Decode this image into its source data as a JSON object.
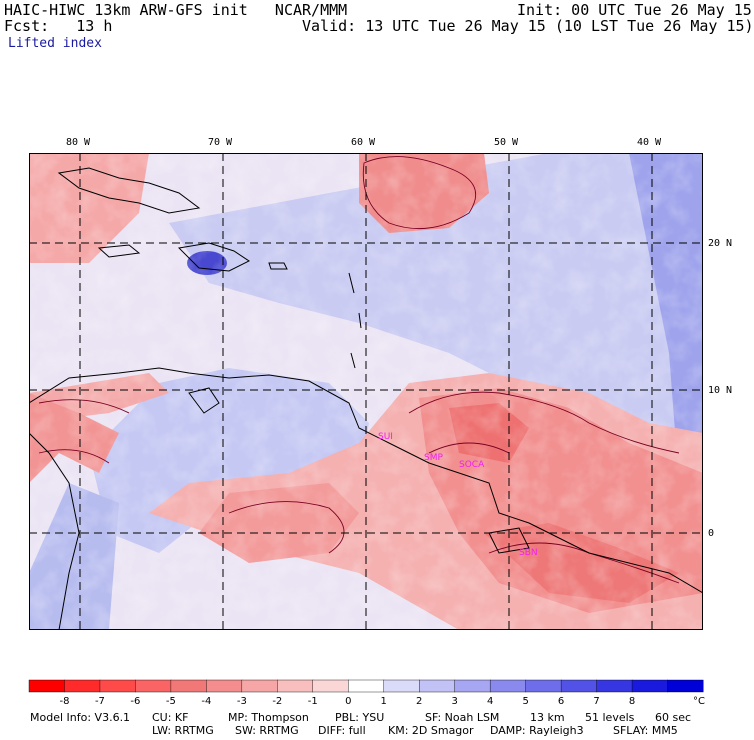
{
  "header": {
    "title": "HAIC-HIWC 13km ARW-GFS init   NCAR/MMM",
    "init": "Init: 00 UTC Tue 26 May 15",
    "fcst": "Fcst:   13 h",
    "valid": "Valid: 13 UTC Tue 26 May 15 (10 LST Tue 26 May 15)",
    "field": "Lifted index"
  },
  "map": {
    "lon_labels": [
      "80 W",
      "70 W",
      "60 W",
      "50 W",
      "40 W"
    ],
    "lat_labels": [
      "20 N",
      "10 N",
      "0"
    ],
    "station_labels": [
      "SUI",
      "SMP",
      "SOCA",
      "SBN"
    ],
    "station_color": "#ee22ee",
    "land_outline_color": "#000000",
    "contour_color": "#7a0022"
  },
  "colorbar": {
    "ticks": [
      "-8",
      "-7",
      "-6",
      "-5",
      "-4",
      "-3",
      "-2",
      "-1",
      "0",
      "1",
      "2",
      "3",
      "4",
      "5",
      "6",
      "7",
      "8"
    ],
    "unit": "°C",
    "colors": [
      "#ff0000",
      "#ff2a2a",
      "#ff4a4a",
      "#fa6464",
      "#f27878",
      "#f48e8e",
      "#f6a6a6",
      "#f9bebe",
      "#fbd6d6",
      "#ffffff",
      "#dadaf9",
      "#c2c2f6",
      "#a6a6f2",
      "#8a8aee",
      "#6e6eea",
      "#5252e6",
      "#3636e2",
      "#1a1ade",
      "#0000d8"
    ]
  },
  "footer": {
    "line1": [
      "Model Info: V3.6.1",
      "CU: KF",
      "MP: Thompson",
      "PBL: YSU",
      "SF: Noah LSM",
      "13 km",
      "51 levels",
      "60 sec"
    ],
    "line2": [
      "LW: RRTMG",
      "SW: RRTMG",
      "DIFF: full",
      "KM: 2D Smagor",
      "DAMP: Rayleigh3",
      "SFLAY: MM5"
    ]
  }
}
